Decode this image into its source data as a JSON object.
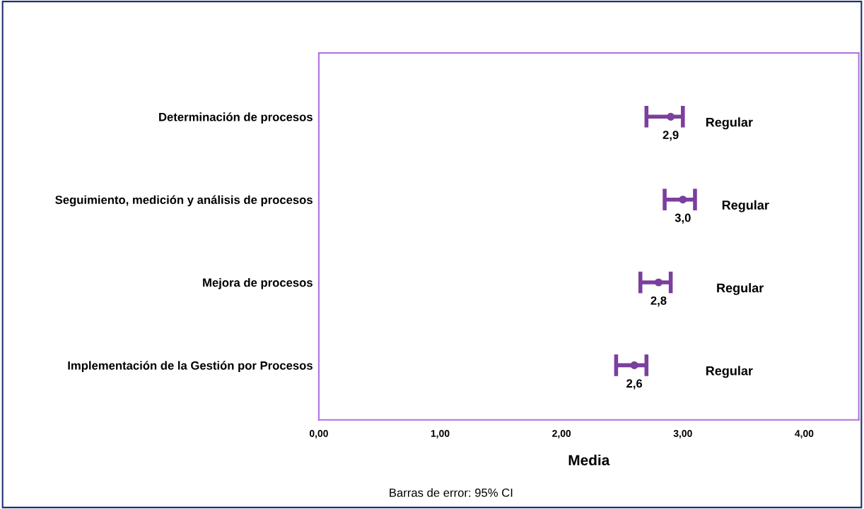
{
  "chart_data": {
    "type": "scatter",
    "orientation": "horizontal",
    "xlabel": "Media",
    "categories": [
      "Determinación de procesos",
      "Seguimiento, medición y análisis de procesos",
      "Mejora de procesos",
      "Implementación de la Gestión por Procesos"
    ],
    "series": [
      {
        "color": "#7b3f9e",
        "values": [
          2.9,
          3.0,
          2.8,
          2.6
        ],
        "errors": [
          [
            2.7,
            3.0
          ],
          [
            2.85,
            3.1
          ],
          [
            2.65,
            2.9
          ],
          [
            2.45,
            2.7
          ]
        ],
        "value_labels": [
          "2,9",
          "3,0",
          "2,8",
          "2,6"
        ]
      }
    ],
    "marker": "circle",
    "xlim": [
      0,
      4.45
    ],
    "xticks": [
      {
        "value": 0,
        "label": "0,00"
      },
      {
        "value": 1,
        "label": "1,00"
      },
      {
        "value": 2,
        "label": "2,00"
      },
      {
        "value": 3,
        "label": "3,00"
      },
      {
        "value": 4,
        "label": "4,00"
      }
    ],
    "grid": false,
    "legend": false,
    "annotations": [
      "Regular",
      "Regular",
      "Regular",
      "Regular",
      "Barras de error: 95% CI"
    ]
  }
}
